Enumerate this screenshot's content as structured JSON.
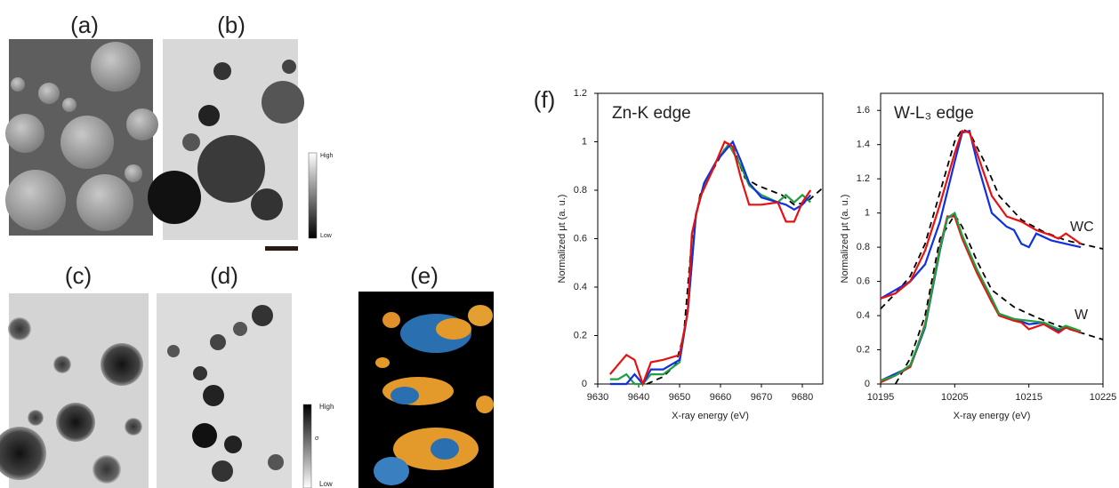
{
  "panels": {
    "a": "(a)",
    "b": "(b)",
    "c": "(c)",
    "d": "(d)",
    "e": "(e)",
    "f": "(f)",
    "colorbar_b": {
      "high": "High",
      "low": "Low"
    },
    "colorbar_d": {
      "high": "High",
      "mid": "σ",
      "low": "Low"
    }
  },
  "chart_data": [
    {
      "type": "line",
      "title": "Zn-K edge",
      "xlabel": "X-ray energy (eV)",
      "ylabel": "Normalized μt (a. u.)",
      "xlim": [
        9630,
        9685
      ],
      "xticks": [
        9630,
        9640,
        9650,
        9660,
        9670,
        9680
      ],
      "ylim": [
        0,
        1.2
      ],
      "yticks": [
        0,
        0.2,
        0.4,
        0.6,
        0.8,
        1,
        1.2
      ],
      "series": [
        {
          "color": "#000000",
          "dashed": true,
          "x": [
            9642,
            9646,
            9649,
            9651,
            9653,
            9655,
            9658,
            9661,
            9663,
            9666,
            9669,
            9672,
            9675,
            9678,
            9681,
            9685
          ],
          "values": [
            0.0,
            0.03,
            0.08,
            0.2,
            0.6,
            0.78,
            0.88,
            0.97,
            0.98,
            0.85,
            0.82,
            0.8,
            0.78,
            0.74,
            0.75,
            0.81
          ]
        },
        {
          "color": "#1fa040",
          "dashed": false,
          "x": [
            9633,
            9635,
            9637,
            9639,
            9641,
            9643,
            9646,
            9650,
            9652,
            9654,
            9656,
            9659,
            9662,
            9665,
            9667,
            9670,
            9674,
            9676,
            9678,
            9680,
            9682
          ],
          "values": [
            0.02,
            0.02,
            0.04,
            0.0,
            0.0,
            0.04,
            0.04,
            0.09,
            0.3,
            0.7,
            0.82,
            0.92,
            0.99,
            0.9,
            0.82,
            0.78,
            0.75,
            0.78,
            0.75,
            0.78,
            0.75
          ]
        },
        {
          "color": "#1030e0",
          "dashed": false,
          "x": [
            9633,
            9637,
            9639,
            9641,
            9643,
            9646,
            9650,
            9652,
            9654,
            9656,
            9659,
            9662,
            9663,
            9665,
            9667,
            9670,
            9674,
            9676,
            9678,
            9680,
            9682
          ],
          "values": [
            0.0,
            0.0,
            0.04,
            0.0,
            0.06,
            0.06,
            0.1,
            0.3,
            0.7,
            0.83,
            0.92,
            0.98,
            1.0,
            0.92,
            0.83,
            0.77,
            0.75,
            0.74,
            0.72,
            0.74,
            0.78
          ]
        },
        {
          "color": "#e81010",
          "dashed": false,
          "x": [
            9633,
            9637,
            9639,
            9641,
            9643,
            9646,
            9650,
            9652,
            9653,
            9655,
            9658,
            9661,
            9663,
            9665,
            9667,
            9670,
            9674,
            9676,
            9678,
            9680,
            9682
          ],
          "values": [
            0.04,
            0.12,
            0.1,
            0.0,
            0.09,
            0.1,
            0.12,
            0.3,
            0.62,
            0.77,
            0.88,
            1.0,
            0.98,
            0.85,
            0.74,
            0.74,
            0.75,
            0.67,
            0.67,
            0.75,
            0.8
          ]
        }
      ]
    },
    {
      "type": "line",
      "title": "W-L₃ edge",
      "xlabel": "X-ray energy (eV)",
      "ylabel": "Normalized μt (a. u.)",
      "annotations": [
        "WC",
        "W"
      ],
      "xlim": [
        10195,
        10225
      ],
      "xticks": [
        10195,
        10205,
        10215,
        10225
      ],
      "ylim": [
        0,
        1.7
      ],
      "yticks": [
        0,
        0.2,
        0.4,
        0.6,
        0.8,
        1,
        1.2,
        1.4,
        1.6
      ],
      "series": [
        {
          "color": "#000000",
          "dashed": true,
          "x": [
            10195,
            10197,
            10199,
            10201,
            10203,
            10205,
            10206,
            10207,
            10209,
            10211,
            10214,
            10217,
            10220,
            10223,
            10225
          ],
          "values": [
            0.44,
            0.53,
            0.63,
            0.82,
            1.12,
            1.42,
            1.49,
            1.47,
            1.3,
            1.1,
            0.96,
            0.89,
            0.84,
            0.81,
            0.79
          ]
        },
        {
          "color": "#1030e0",
          "dashed": false,
          "x": [
            10195,
            10197,
            10199,
            10201,
            10203,
            10205,
            10206,
            10207,
            10208,
            10210,
            10212,
            10213,
            10214,
            10215,
            10216,
            10218,
            10220,
            10222
          ],
          "values": [
            0.5,
            0.55,
            0.6,
            0.7,
            0.95,
            1.3,
            1.47,
            1.48,
            1.3,
            1.0,
            0.92,
            0.9,
            0.82,
            0.8,
            0.88,
            0.84,
            0.82,
            0.8
          ]
        },
        {
          "color": "#e81010",
          "dashed": false,
          "x": [
            10195,
            10197,
            10199,
            10201,
            10203,
            10205,
            10206,
            10207,
            10208,
            10210,
            10212,
            10214,
            10216,
            10218,
            10219,
            10220,
            10221,
            10222
          ],
          "values": [
            0.5,
            0.53,
            0.6,
            0.78,
            1.05,
            1.35,
            1.48,
            1.47,
            1.35,
            1.1,
            0.98,
            0.95,
            0.9,
            0.87,
            0.85,
            0.88,
            0.85,
            0.82
          ]
        },
        {
          "color": "#000000",
          "dashed": true,
          "x": [
            10197,
            10199,
            10201,
            10203,
            10205,
            10206,
            10208,
            10210,
            10213,
            10216,
            10219,
            10222,
            10225
          ],
          "values": [
            0.0,
            0.15,
            0.4,
            0.85,
            0.99,
            0.92,
            0.72,
            0.55,
            0.45,
            0.39,
            0.34,
            0.3,
            0.26
          ]
        },
        {
          "color": "#1030e0",
          "dashed": false,
          "x": [
            10195,
            10197,
            10199,
            10201,
            10203,
            10204,
            10205,
            10206,
            10208,
            10210,
            10211,
            10213,
            10215,
            10217,
            10219,
            10220,
            10222
          ],
          "values": [
            0.02,
            0.06,
            0.1,
            0.33,
            0.78,
            0.97,
            0.99,
            0.86,
            0.66,
            0.48,
            0.41,
            0.38,
            0.35,
            0.36,
            0.31,
            0.33,
            0.31
          ]
        },
        {
          "color": "#e81010",
          "dashed": false,
          "x": [
            10195,
            10197,
            10199,
            10201,
            10203,
            10204,
            10205,
            10206,
            10208,
            10210,
            10211,
            10213,
            10214,
            10215,
            10217,
            10219,
            10220,
            10222
          ],
          "values": [
            0.01,
            0.05,
            0.1,
            0.35,
            0.8,
            0.98,
            0.98,
            0.85,
            0.65,
            0.48,
            0.4,
            0.37,
            0.36,
            0.32,
            0.35,
            0.3,
            0.33,
            0.3
          ]
        },
        {
          "color": "#1fa040",
          "dashed": false,
          "x": [
            10195,
            10197,
            10199,
            10201,
            10203,
            10204,
            10205,
            10206,
            10208,
            10210,
            10211,
            10213,
            10215,
            10217,
            10219,
            10220,
            10222
          ],
          "values": [
            0.02,
            0.05,
            0.11,
            0.34,
            0.79,
            0.97,
            1.0,
            0.87,
            0.67,
            0.5,
            0.41,
            0.38,
            0.37,
            0.36,
            0.32,
            0.34,
            0.31
          ]
        }
      ]
    }
  ]
}
